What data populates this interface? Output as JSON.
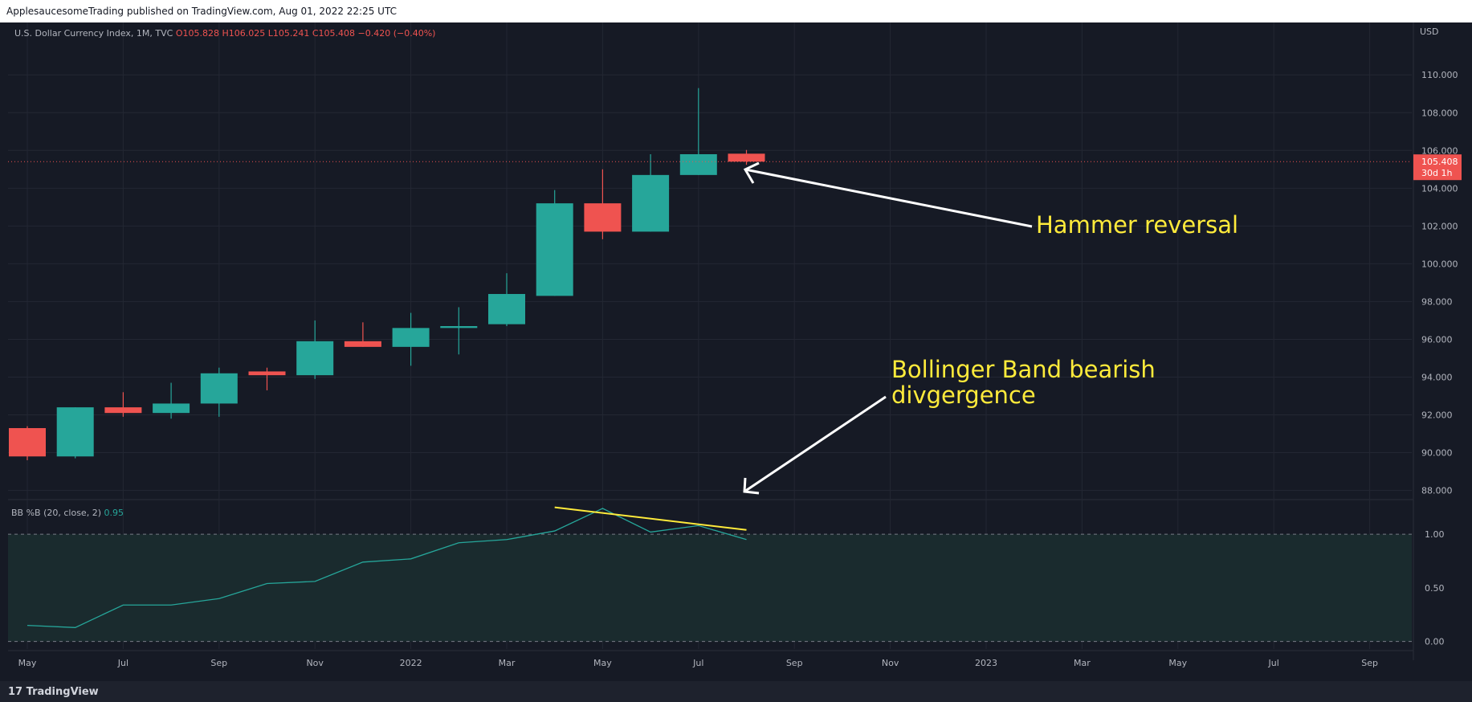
{
  "header": {
    "publisher": "ApplesaucesomeTrading published on TradingView.com, Aug 01, 2022 22:25 UTC"
  },
  "footer": {
    "brand": "TradingView",
    "logo_icon": "tradingview-logo-icon"
  },
  "colors": {
    "bull": "#26a69a",
    "bear": "#ef5350",
    "annotation": "#ffeb3b",
    "background": "#161a25"
  },
  "chart_data": [
    {
      "type": "candlestick",
      "symbol_line": {
        "name": "U.S. Dollar Currency Index, 1M, TVC",
        "ohlc": "O105.828 H106.025 L105.241 C105.408 −0.420 (−0.40%)"
      },
      "currency": "USD",
      "ylim": [
        87.6,
        111.2
      ],
      "yticks": [
        "110.000",
        "108.000",
        "106.000",
        "104.000",
        "102.000",
        "100.000",
        "98.000",
        "96.000",
        "94.000",
        "92.000",
        "90.000",
        "88.000"
      ],
      "ytick_values": [
        110,
        108,
        106,
        104,
        102,
        100,
        98,
        96,
        94,
        92,
        90,
        88
      ],
      "last_price": {
        "value": 105.408,
        "label": "105.408",
        "countdown": "30d 1h"
      },
      "candles": [
        {
          "o": 91.3,
          "h": 91.4,
          "l": 89.6,
          "c": 89.8
        },
        {
          "o": 89.8,
          "h": 92.4,
          "l": 89.7,
          "c": 92.4
        },
        {
          "o": 92.4,
          "h": 93.2,
          "l": 91.9,
          "c": 92.1
        },
        {
          "o": 92.1,
          "h": 93.7,
          "l": 91.8,
          "c": 92.6
        },
        {
          "o": 92.6,
          "h": 94.5,
          "l": 91.9,
          "c": 94.2
        },
        {
          "o": 94.3,
          "h": 94.5,
          "l": 93.3,
          "c": 94.1
        },
        {
          "o": 94.1,
          "h": 97.0,
          "l": 93.9,
          "c": 95.9
        },
        {
          "o": 95.9,
          "h": 96.9,
          "l": 95.6,
          "c": 95.6
        },
        {
          "o": 95.6,
          "h": 97.4,
          "l": 94.6,
          "c": 96.6
        },
        {
          "o": 96.6,
          "h": 97.7,
          "l": 95.2,
          "c": 96.7
        },
        {
          "o": 96.8,
          "h": 99.5,
          "l": 96.7,
          "c": 98.4
        },
        {
          "o": 98.3,
          "h": 103.9,
          "l": 98.3,
          "c": 103.2
        },
        {
          "o": 103.2,
          "h": 105.0,
          "l": 101.3,
          "c": 101.7
        },
        {
          "o": 101.7,
          "h": 105.8,
          "l": 101.7,
          "c": 104.7
        },
        {
          "o": 104.7,
          "h": 109.3,
          "l": 104.7,
          "c": 105.8
        },
        {
          "o": 105.828,
          "h": 106.025,
          "l": 105.241,
          "c": 105.408
        }
      ]
    },
    {
      "type": "line",
      "indicator": {
        "name": "BB %B (20, close, 2)",
        "value": "0.95"
      },
      "ylim": [
        -0.07,
        1.3
      ],
      "yticks": [
        "1.00",
        "0.50",
        "0.00"
      ],
      "ytick_values": [
        1.0,
        0.5,
        0.0
      ],
      "values": [
        0.15,
        0.13,
        0.34,
        0.34,
        0.4,
        0.54,
        0.56,
        0.74,
        0.77,
        0.92,
        0.95,
        1.03,
        1.24,
        1.02,
        1.08,
        0.95
      ],
      "divergence_line": {
        "from": [
          11,
          1.25
        ],
        "to": [
          15,
          1.04
        ]
      }
    }
  ],
  "x_axis": {
    "labels": [
      "May",
      "Jul",
      "Sep",
      "Nov",
      "2022",
      "Mar",
      "May",
      "Jul",
      "Sep",
      "Nov",
      "2023",
      "Mar",
      "May",
      "Jul",
      "Sep"
    ],
    "label_months": [
      0,
      2,
      4,
      6,
      8,
      10,
      12,
      14,
      16,
      18,
      20,
      22,
      24,
      26,
      28
    ]
  },
  "annotations": {
    "hammer": "Hammer reversal",
    "bollinger_line1": "Bollinger Band bearish",
    "bollinger_line2": "divgergence"
  }
}
